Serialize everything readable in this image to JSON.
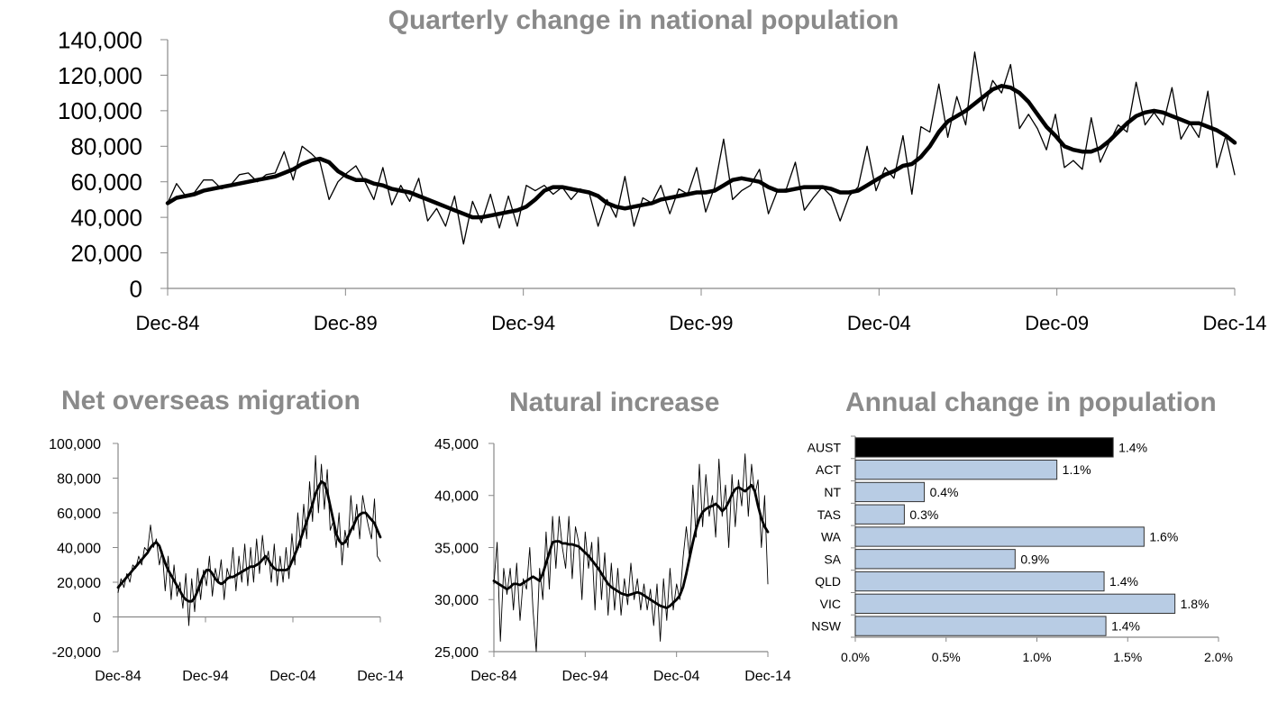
{
  "chart_data": [
    {
      "id": "main",
      "type": "line",
      "title": "Quarterly change in national population",
      "ylim": [
        0,
        140000
      ],
      "yticks": [
        0,
        20000,
        40000,
        60000,
        80000,
        100000,
        120000,
        140000
      ],
      "ytick_labels": [
        "0",
        "20,000",
        "40,000",
        "60,000",
        "80,000",
        "100,000",
        "120,000",
        "140,000"
      ],
      "xtick_labels": [
        "Dec-84",
        "Dec-89",
        "Dec-94",
        "Dec-99",
        "Dec-04",
        "Dec-09",
        "Dec-14"
      ],
      "x_range": [
        "Dec-84",
        "Dec-14"
      ],
      "grid": false,
      "series": [
        {
          "style": "thin",
          "values": [
            48000,
            59000,
            52000,
            54000,
            61000,
            61000,
            56000,
            58000,
            64000,
            65000,
            60000,
            64000,
            65000,
            77000,
            61000,
            80000,
            76000,
            71000,
            50000,
            60000,
            65000,
            69000,
            60000,
            50000,
            68000,
            47000,
            58000,
            49000,
            62000,
            38000,
            45000,
            35000,
            52000,
            25000,
            49000,
            37000,
            53000,
            34000,
            52000,
            35000,
            58000,
            55000,
            58000,
            53000,
            57000,
            50000,
            56000,
            54000,
            35000,
            50000,
            40000,
            63000,
            35000,
            51000,
            48000,
            58000,
            42000,
            56000,
            53000,
            68000,
            43000,
            57000,
            84000,
            50000,
            55000,
            58000,
            67000,
            42000,
            55000,
            56000,
            71000,
            44000,
            51000,
            57000,
            52000,
            38000,
            52000,
            57000,
            80000,
            55000,
            68000,
            62000,
            86000,
            53000,
            91000,
            88000,
            115000,
            85000,
            108000,
            92000,
            133000,
            100000,
            117000,
            110000,
            126000,
            90000,
            98000,
            90000,
            78000,
            98000,
            68000,
            72000,
            67000,
            96000,
            71000,
            82000,
            92000,
            88000,
            116000,
            92000,
            99000,
            92000,
            113000,
            84000,
            93000,
            85000,
            111000,
            68000,
            86000,
            64000
          ]
        },
        {
          "style": "thick",
          "values": [
            48000,
            51000,
            52000,
            53000,
            55000,
            56000,
            57000,
            58000,
            59000,
            60000,
            61000,
            62000,
            63000,
            65000,
            67000,
            70000,
            72000,
            73000,
            71000,
            66000,
            63000,
            61000,
            61000,
            59000,
            58000,
            56000,
            55000,
            54000,
            52000,
            50000,
            48000,
            46000,
            44000,
            42000,
            40000,
            40000,
            41000,
            42000,
            43000,
            44000,
            46000,
            50000,
            55000,
            57000,
            57000,
            56000,
            55000,
            54000,
            52000,
            48000,
            46000,
            45000,
            46000,
            47000,
            48000,
            50000,
            51000,
            52000,
            53000,
            54000,
            54000,
            55000,
            58000,
            61000,
            62000,
            61000,
            60000,
            57000,
            55000,
            55000,
            56000,
            57000,
            57000,
            57000,
            56000,
            54000,
            54000,
            55000,
            58000,
            61000,
            64000,
            66000,
            69000,
            70000,
            74000,
            80000,
            88000,
            94000,
            97000,
            100000,
            104000,
            108000,
            112000,
            114000,
            113000,
            110000,
            105000,
            98000,
            91000,
            86000,
            80000,
            78000,
            77000,
            77000,
            79000,
            83000,
            88000,
            93000,
            97000,
            99000,
            100000,
            99000,
            97000,
            95000,
            93000,
            93000,
            91000,
            89000,
            86000,
            82000
          ]
        }
      ]
    },
    {
      "id": "nom",
      "type": "line",
      "title": "Net overseas migration",
      "ylim": [
        -20000,
        100000
      ],
      "yticks": [
        -20000,
        0,
        20000,
        40000,
        60000,
        80000,
        100000
      ],
      "ytick_labels": [
        "-20,000",
        "0",
        "20,000",
        "40,000",
        "60,000",
        "80,000",
        "100,000"
      ],
      "xtick_labels": [
        "Dec-84",
        "Dec-94",
        "Dec-04",
        "Dec-14"
      ],
      "x_range": [
        "Dec-84",
        "Dec-14"
      ],
      "grid": false,
      "series": [
        {
          "style": "thin",
          "values": [
            14000,
            22000,
            17000,
            25000,
            20000,
            30000,
            28000,
            35000,
            30000,
            40000,
            38000,
            53000,
            40000,
            45000,
            30000,
            38000,
            15000,
            35000,
            10000,
            30000,
            12000,
            20000,
            5000,
            25000,
            -5000,
            22000,
            3000,
            28000,
            10000,
            27000,
            18000,
            35000,
            12000,
            28000,
            20000,
            33000,
            10000,
            28000,
            22000,
            40000,
            15000,
            35000,
            20000,
            42000,
            18000,
            40000,
            20000,
            45000,
            25000,
            47000,
            30000,
            38000,
            20000,
            42000,
            18000,
            35000,
            20000,
            40000,
            22000,
            48000,
            30000,
            60000,
            40000,
            65000,
            45000,
            78000,
            55000,
            93000,
            60000,
            88000,
            62000,
            85000,
            50000,
            55000,
            40000,
            60000,
            30000,
            50000,
            40000,
            70000,
            50000,
            65000,
            45000,
            70000,
            60000,
            52000,
            45000,
            68000,
            35000,
            32000
          ]
        },
        {
          "style": "thick",
          "values": [
            17000,
            19000,
            21000,
            23000,
            25000,
            27000,
            29000,
            31000,
            33000,
            35000,
            37000,
            40000,
            42000,
            43000,
            41000,
            36000,
            31000,
            27000,
            24000,
            21000,
            18000,
            15000,
            12000,
            10000,
            9000,
            9000,
            11000,
            15000,
            20000,
            24000,
            27000,
            27000,
            25000,
            22000,
            20000,
            19000,
            20000,
            22000,
            23000,
            23000,
            24000,
            25000,
            26000,
            27000,
            28000,
            29000,
            29000,
            30000,
            31000,
            33000,
            35000,
            33000,
            30000,
            28000,
            27000,
            27000,
            27000,
            27000,
            28000,
            32000,
            36000,
            40000,
            45000,
            50000,
            55000,
            60000,
            65000,
            71000,
            75000,
            78000,
            77000,
            72000,
            64000,
            56000,
            48000,
            44000,
            42000,
            43000,
            46000,
            50000,
            53000,
            57000,
            59000,
            60000,
            60000,
            58000,
            56000,
            54000,
            50000,
            46000
          ]
        }
      ]
    },
    {
      "id": "ni",
      "type": "line",
      "title": "Natural increase",
      "ylim": [
        25000,
        45000
      ],
      "yticks": [
        25000,
        30000,
        35000,
        40000,
        45000
      ],
      "ytick_labels": [
        "25,000",
        "30,000",
        "35,000",
        "40,000",
        "45,000"
      ],
      "xtick_labels": [
        "Dec-84",
        "Dec-94",
        "Dec-04",
        "Dec-14"
      ],
      "x_range": [
        "Dec-84",
        "Dec-14"
      ],
      "grid": false,
      "series": [
        {
          "style": "thin",
          "values": [
            31500,
            35500,
            26000,
            33000,
            30500,
            33000,
            29000,
            33500,
            28000,
            32000,
            31000,
            35000,
            29000,
            25000,
            33000,
            30000,
            36500,
            31000,
            38000,
            33000,
            38000,
            35000,
            33000,
            38000,
            32000,
            37000,
            35500,
            30000,
            36500,
            33000,
            35500,
            29000,
            36000,
            30000,
            34500,
            28500,
            33500,
            29000,
            33000,
            28500,
            32000,
            29500,
            33500,
            30000,
            32000,
            29000,
            31500,
            29000,
            31000,
            27500,
            31500,
            26000,
            32000,
            28000,
            33000,
            29000,
            31500,
            30000,
            34000,
            37000,
            34000,
            41000,
            36000,
            43000,
            37000,
            42000,
            38000,
            40000,
            36000,
            43500,
            38000,
            41000,
            35000,
            42000,
            37000,
            41500,
            39000,
            44000,
            38000,
            43000,
            40000,
            41500,
            35000,
            40000,
            31500
          ]
        },
        {
          "style": "thick",
          "values": [
            31800,
            31600,
            31400,
            31200,
            31000,
            31200,
            31500,
            31500,
            31400,
            31600,
            31800,
            32000,
            32200,
            32000,
            31800,
            32500,
            33500,
            34500,
            35500,
            35600,
            35600,
            35400,
            35400,
            35300,
            35300,
            35200,
            35100,
            34800,
            34500,
            34200,
            33800,
            33400,
            33000,
            32500,
            32000,
            31500,
            31200,
            31000,
            30800,
            30600,
            30500,
            30400,
            30500,
            30600,
            30700,
            30600,
            30400,
            30200,
            30000,
            29800,
            29600,
            29400,
            29300,
            29200,
            29400,
            29700,
            30000,
            30400,
            31200,
            32500,
            34000,
            35500,
            36800,
            37800,
            38400,
            38700,
            38900,
            39000,
            39200,
            38900,
            38500,
            38800,
            39400,
            40100,
            40600,
            40800,
            40600,
            40400,
            40700,
            41000,
            40400,
            39000,
            37800,
            37000,
            36500
          ]
        }
      ]
    },
    {
      "id": "ac",
      "type": "bar",
      "orientation": "horizontal",
      "title": "Annual change in population",
      "categories": [
        "AUST",
        "ACT",
        "NT",
        "TAS",
        "WA",
        "SA",
        "QLD",
        "VIC",
        "NSW"
      ],
      "values": [
        1.42,
        1.11,
        0.38,
        0.27,
        1.59,
        0.88,
        1.37,
        1.76,
        1.38
      ],
      "data_labels": [
        "1.4%",
        "1.1%",
        "0.4%",
        "0.3%",
        "1.6%",
        "0.9%",
        "1.4%",
        "1.8%",
        "1.4%"
      ],
      "bar_colors": [
        "#000000",
        "#b8cce4",
        "#b8cce4",
        "#b8cce4",
        "#b8cce4",
        "#b8cce4",
        "#b8cce4",
        "#b8cce4",
        "#b8cce4"
      ],
      "xlim": [
        0,
        2.0
      ],
      "xticks": [
        0,
        0.5,
        1.0,
        1.5,
        2.0
      ],
      "xtick_labels": [
        "0.0%",
        "0.5%",
        "1.0%",
        "1.5%",
        "2.0%"
      ],
      "grid": false
    }
  ]
}
